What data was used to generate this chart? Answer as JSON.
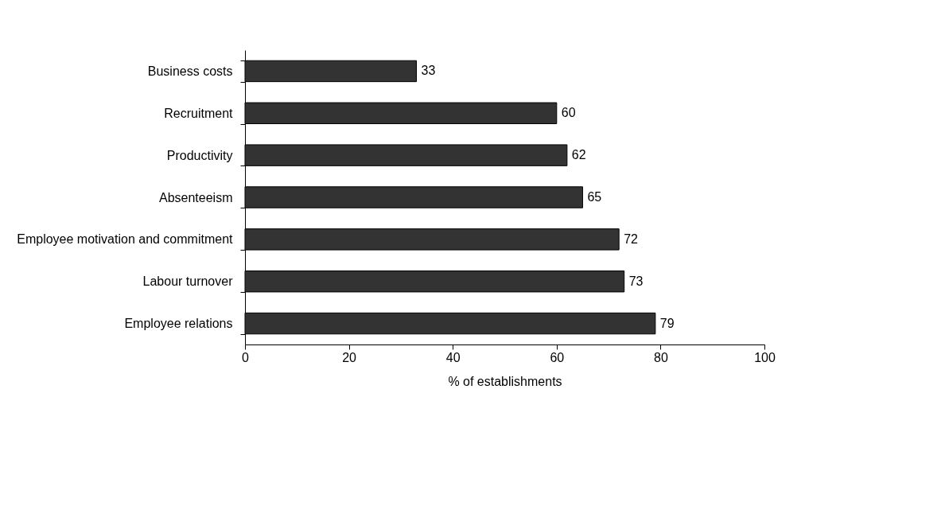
{
  "chart_data": {
    "type": "bar",
    "orientation": "horizontal",
    "xlabel": "% of establishments",
    "categories": [
      "Business costs",
      "Recruitment",
      "Productivity",
      "Absenteeism",
      "Employee motivation and commitment",
      "Labour turnover",
      "Employee relations"
    ],
    "values": [
      33,
      60,
      62,
      65,
      72,
      73,
      79
    ],
    "color": "#333333",
    "xlim": [
      0,
      100
    ],
    "xticks": [
      0,
      20,
      40,
      60,
      80,
      100
    ],
    "data_labels": true,
    "grid": false
  }
}
